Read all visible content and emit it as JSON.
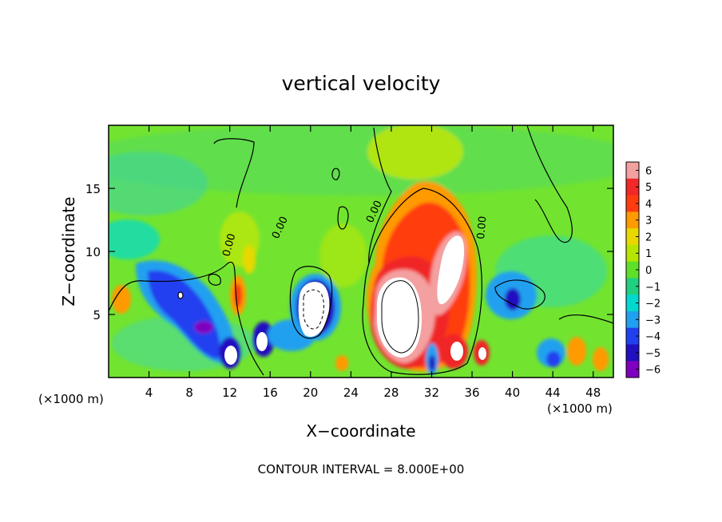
{
  "chart_data": {
    "type": "heatmap",
    "title": "vertical velocity",
    "xlabel": "X−coordinate",
    "ylabel": "Z−coordinate",
    "x_unit_left": "(×1000 m)",
    "x_unit_right": "(×1000 m)",
    "xlim": [
      0,
      50
    ],
    "ylim": [
      0,
      20
    ],
    "x_ticks": [
      4,
      8,
      12,
      16,
      20,
      24,
      28,
      32,
      36,
      40,
      44,
      48
    ],
    "y_ticks": [
      5,
      10,
      15
    ],
    "contour_label": "0.00",
    "contour_interval_text": "CONTOUR INTERVAL = 8.000E+00",
    "colorbar": {
      "range": [
        -6,
        6
      ],
      "tick_labels": [
        "6",
        "5",
        "4",
        "3",
        "2",
        "1",
        "0",
        "−1",
        "−2",
        "−3",
        "−4",
        "−5",
        "−6"
      ],
      "colors": [
        "#f4a0a0",
        "#f02828",
        "#ff3c10",
        "#ff9a00",
        "#e8d800",
        "#b6e600",
        "#5ee028",
        "#20d080",
        "#00d8d0",
        "#20a0f0",
        "#2040f0",
        "#2010c0",
        "#8000c0"
      ]
    },
    "features": [
      {
        "kind": "updraft",
        "x": 31,
        "z": 6,
        "value": 6,
        "note": "strongest ascent, white core above 6"
      },
      {
        "kind": "updraft",
        "x": 33.5,
        "z": 9,
        "value": 6
      },
      {
        "kind": "updraft",
        "x": 31,
        "z": 13,
        "value": 3
      },
      {
        "kind": "updraft",
        "x": 0.8,
        "z": 6,
        "value": 3
      },
      {
        "kind": "updraft",
        "x": 12.8,
        "z": 7,
        "value": 3
      },
      {
        "kind": "updraft",
        "x": 45.8,
        "z": 2,
        "value": 3
      },
      {
        "kind": "downdraft",
        "x": 8,
        "z": 5,
        "value": -5
      },
      {
        "kind": "downdraft",
        "x": 11.5,
        "z": 2,
        "value": -6
      },
      {
        "kind": "downdraft",
        "x": 15.5,
        "z": 3,
        "value": -6
      },
      {
        "kind": "downdraft",
        "x": 20,
        "z": 5.5,
        "value": -6
      },
      {
        "kind": "downdraft",
        "x": 32,
        "z": 1.5,
        "value": -5
      },
      {
        "kind": "downdraft",
        "x": 39.5,
        "z": 6,
        "value": -5
      },
      {
        "kind": "downdraft",
        "x": 43.5,
        "z": 2,
        "value": -4
      }
    ]
  }
}
